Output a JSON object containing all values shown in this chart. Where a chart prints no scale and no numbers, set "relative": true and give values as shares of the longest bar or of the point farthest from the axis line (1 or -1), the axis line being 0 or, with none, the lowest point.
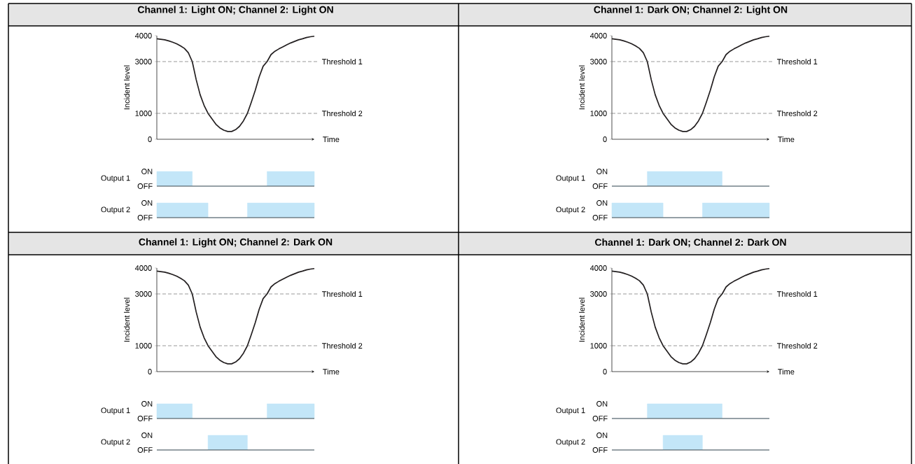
{
  "chart_data": [
    {
      "type": "line",
      "title": "Channel 1: Light ON; Channel 2: Light ON",
      "xlabel": "Time",
      "ylabel": "Incident level",
      "categories": [
        null,
        null,
        null,
        null,
        null,
        null,
        null,
        null,
        null,
        null,
        null,
        null,
        null,
        null,
        null,
        null,
        null,
        null,
        null,
        null,
        null,
        null,
        null,
        null,
        null,
        null,
        null,
        null,
        null,
        null,
        null,
        null,
        null,
        null,
        null,
        null,
        null,
        null,
        null,
        null,
        null
      ],
      "series": [
        {
          "color": "#231f20",
          "values": [
            3880,
            3860,
            3840,
            3800,
            3750,
            3690,
            3610,
            3510,
            3340,
            3000,
            2300,
            1720,
            1310,
            1000,
            790,
            580,
            440,
            350,
            300,
            300,
            370,
            500,
            710,
            1000,
            1430,
            1890,
            2410,
            2820,
            3000,
            3270,
            3400,
            3490,
            3570,
            3650,
            3720,
            3780,
            3840,
            3880,
            3930,
            3960,
            3980
          ]
        }
      ],
      "ylim": [
        0,
        4000
      ],
      "yticks": [
        0,
        1000,
        3000,
        4000
      ],
      "ref_lines": [
        {
          "axis": "y",
          "value": 3000,
          "label": "Threshold 1",
          "color": "#555555",
          "line_style": "dashed"
        },
        {
          "axis": "y",
          "value": 1000,
          "label": "Threshold 2",
          "color": "#555555",
          "line_style": "dashed"
        }
      ],
      "tick_labels": "y"
    },
    {
      "type": "area",
      "relative": true,
      "ylabel": "Output 1",
      "annotations": [
        "ON",
        "OFF"
      ],
      "categories": [
        null,
        null,
        null,
        null,
        null,
        null,
        null,
        null,
        null,
        null,
        null,
        null,
        null,
        null,
        null,
        null,
        null,
        null,
        null,
        null,
        null,
        null,
        null,
        null,
        null,
        null,
        null,
        null,
        null,
        null,
        null,
        null,
        null,
        null,
        null,
        null,
        null,
        null,
        null,
        null,
        null
      ],
      "series": [
        {
          "color": "#c3e6f8",
          "values": [
            1,
            1,
            1,
            1,
            1,
            1,
            1,
            1,
            1,
            0,
            0,
            0,
            0,
            0,
            0,
            0,
            0,
            0,
            0,
            0,
            0,
            0,
            0,
            0,
            0,
            0,
            0,
            0,
            1,
            1,
            1,
            1,
            1,
            1,
            1,
            1,
            1,
            1,
            1,
            1,
            1
          ]
        }
      ]
    },
    {
      "type": "area",
      "relative": true,
      "ylabel": "Output 2",
      "annotations": [
        "ON",
        "OFF"
      ],
      "categories": [
        null,
        null,
        null,
        null,
        null,
        null,
        null,
        null,
        null,
        null,
        null,
        null,
        null,
        null,
        null,
        null,
        null,
        null,
        null,
        null,
        null,
        null,
        null,
        null,
        null,
        null,
        null,
        null,
        null,
        null,
        null,
        null,
        null,
        null,
        null,
        null,
        null,
        null,
        null,
        null,
        null
      ],
      "series": [
        {
          "color": "#c3e6f8",
          "values": [
            1,
            1,
            1,
            1,
            1,
            1,
            1,
            1,
            1,
            1,
            1,
            1,
            1,
            0,
            0,
            0,
            0,
            0,
            0,
            0,
            0,
            0,
            0,
            1,
            1,
            1,
            1,
            1,
            1,
            1,
            1,
            1,
            1,
            1,
            1,
            1,
            1,
            1,
            1,
            1,
            1
          ]
        }
      ]
    },
    {
      "type": "line",
      "title": "Channel 1: Dark ON; Channel 2: Light ON",
      "xlabel": "Time",
      "ylabel": "Incident level",
      "categories": [
        null,
        null,
        null,
        null,
        null,
        null,
        null,
        null,
        null,
        null,
        null,
        null,
        null,
        null,
        null,
        null,
        null,
        null,
        null,
        null,
        null,
        null,
        null,
        null,
        null,
        null,
        null,
        null,
        null,
        null,
        null,
        null,
        null,
        null,
        null,
        null,
        null,
        null,
        null,
        null,
        null
      ],
      "series": [
        {
          "color": "#231f20",
          "values": [
            3880,
            3860,
            3840,
            3800,
            3750,
            3690,
            3610,
            3510,
            3340,
            3000,
            2300,
            1720,
            1310,
            1000,
            790,
            580,
            440,
            350,
            300,
            300,
            370,
            500,
            710,
            1000,
            1430,
            1890,
            2410,
            2820,
            3000,
            3270,
            3400,
            3490,
            3570,
            3650,
            3720,
            3780,
            3840,
            3880,
            3930,
            3960,
            3980
          ]
        }
      ],
      "ylim": [
        0,
        4000
      ],
      "yticks": [
        0,
        1000,
        3000,
        4000
      ],
      "ref_lines": [
        {
          "axis": "y",
          "value": 3000,
          "label": "Threshold 1",
          "color": "#555555",
          "line_style": "dashed"
        },
        {
          "axis": "y",
          "value": 1000,
          "label": "Threshold 2",
          "color": "#555555",
          "line_style": "dashed"
        }
      ],
      "tick_labels": "y"
    },
    {
      "type": "area",
      "relative": true,
      "ylabel": "Output 1",
      "annotations": [
        "ON",
        "OFF"
      ],
      "categories": [
        null,
        null,
        null,
        null,
        null,
        null,
        null,
        null,
        null,
        null,
        null,
        null,
        null,
        null,
        null,
        null,
        null,
        null,
        null,
        null,
        null,
        null,
        null,
        null,
        null,
        null,
        null,
        null,
        null,
        null,
        null,
        null,
        null,
        null,
        null,
        null,
        null,
        null,
        null,
        null,
        null
      ],
      "series": [
        {
          "color": "#c3e6f8",
          "values": [
            0,
            0,
            0,
            0,
            0,
            0,
            0,
            0,
            0,
            1,
            1,
            1,
            1,
            1,
            1,
            1,
            1,
            1,
            1,
            1,
            1,
            1,
            1,
            1,
            1,
            1,
            1,
            1,
            0,
            0,
            0,
            0,
            0,
            0,
            0,
            0,
            0,
            0,
            0,
            0,
            0
          ]
        }
      ]
    },
    {
      "type": "area",
      "relative": true,
      "ylabel": "Output 2",
      "annotations": [
        "ON",
        "OFF"
      ],
      "categories": [
        null,
        null,
        null,
        null,
        null,
        null,
        null,
        null,
        null,
        null,
        null,
        null,
        null,
        null,
        null,
        null,
        null,
        null,
        null,
        null,
        null,
        null,
        null,
        null,
        null,
        null,
        null,
        null,
        null,
        null,
        null,
        null,
        null,
        null,
        null,
        null,
        null,
        null,
        null,
        null,
        null
      ],
      "series": [
        {
          "color": "#c3e6f8",
          "values": [
            1,
            1,
            1,
            1,
            1,
            1,
            1,
            1,
            1,
            1,
            1,
            1,
            1,
            0,
            0,
            0,
            0,
            0,
            0,
            0,
            0,
            0,
            0,
            1,
            1,
            1,
            1,
            1,
            1,
            1,
            1,
            1,
            1,
            1,
            1,
            1,
            1,
            1,
            1,
            1,
            1
          ]
        }
      ]
    },
    {
      "type": "line",
      "title": "Channel 1: Light ON; Channel 2: Dark ON",
      "xlabel": "Time",
      "ylabel": "Incident level",
      "categories": [
        null,
        null,
        null,
        null,
        null,
        null,
        null,
        null,
        null,
        null,
        null,
        null,
        null,
        null,
        null,
        null,
        null,
        null,
        null,
        null,
        null,
        null,
        null,
        null,
        null,
        null,
        null,
        null,
        null,
        null,
        null,
        null,
        null,
        null,
        null,
        null,
        null,
        null,
        null,
        null,
        null
      ],
      "series": [
        {
          "color": "#231f20",
          "values": [
            3880,
            3860,
            3840,
            3800,
            3750,
            3690,
            3610,
            3510,
            3340,
            3000,
            2300,
            1720,
            1310,
            1000,
            790,
            580,
            440,
            350,
            300,
            300,
            370,
            500,
            710,
            1000,
            1430,
            1890,
            2410,
            2820,
            3000,
            3270,
            3400,
            3490,
            3570,
            3650,
            3720,
            3780,
            3840,
            3880,
            3930,
            3960,
            3980
          ]
        }
      ],
      "ylim": [
        0,
        4000
      ],
      "yticks": [
        0,
        1000,
        3000,
        4000
      ],
      "ref_lines": [
        {
          "axis": "y",
          "value": 3000,
          "label": "Threshold 1",
          "color": "#555555",
          "line_style": "dashed"
        },
        {
          "axis": "y",
          "value": 1000,
          "label": "Threshold 2",
          "color": "#555555",
          "line_style": "dashed"
        }
      ],
      "tick_labels": "y"
    },
    {
      "type": "area",
      "relative": true,
      "ylabel": "Output 1",
      "annotations": [
        "ON",
        "OFF"
      ],
      "categories": [
        null,
        null,
        null,
        null,
        null,
        null,
        null,
        null,
        null,
        null,
        null,
        null,
        null,
        null,
        null,
        null,
        null,
        null,
        null,
        null,
        null,
        null,
        null,
        null,
        null,
        null,
        null,
        null,
        null,
        null,
        null,
        null,
        null,
        null,
        null,
        null,
        null,
        null,
        null,
        null,
        null
      ],
      "series": [
        {
          "color": "#c3e6f8",
          "values": [
            1,
            1,
            1,
            1,
            1,
            1,
            1,
            1,
            1,
            0,
            0,
            0,
            0,
            0,
            0,
            0,
            0,
            0,
            0,
            0,
            0,
            0,
            0,
            0,
            0,
            0,
            0,
            0,
            1,
            1,
            1,
            1,
            1,
            1,
            1,
            1,
            1,
            1,
            1,
            1,
            1
          ]
        }
      ]
    },
    {
      "type": "area",
      "relative": true,
      "ylabel": "Output 2",
      "annotations": [
        "ON",
        "OFF"
      ],
      "categories": [
        null,
        null,
        null,
        null,
        null,
        null,
        null,
        null,
        null,
        null,
        null,
        null,
        null,
        null,
        null,
        null,
        null,
        null,
        null,
        null,
        null,
        null,
        null,
        null,
        null,
        null,
        null,
        null,
        null,
        null,
        null,
        null,
        null,
        null,
        null,
        null,
        null,
        null,
        null,
        null,
        null
      ],
      "series": [
        {
          "color": "#c3e6f8",
          "values": [
            0,
            0,
            0,
            0,
            0,
            0,
            0,
            0,
            0,
            0,
            0,
            0,
            0,
            1,
            1,
            1,
            1,
            1,
            1,
            1,
            1,
            1,
            1,
            0,
            0,
            0,
            0,
            0,
            0,
            0,
            0,
            0,
            0,
            0,
            0,
            0,
            0,
            0,
            0,
            0,
            0
          ]
        }
      ]
    },
    {
      "type": "line",
      "title": "Channel 1: Dark ON; Channel 2: Dark ON",
      "xlabel": "Time",
      "ylabel": "Incident level",
      "categories": [
        null,
        null,
        null,
        null,
        null,
        null,
        null,
        null,
        null,
        null,
        null,
        null,
        null,
        null,
        null,
        null,
        null,
        null,
        null,
        null,
        null,
        null,
        null,
        null,
        null,
        null,
        null,
        null,
        null,
        null,
        null,
        null,
        null,
        null,
        null,
        null,
        null,
        null,
        null,
        null,
        null
      ],
      "series": [
        {
          "color": "#231f20",
          "values": [
            3880,
            3860,
            3840,
            3800,
            3750,
            3690,
            3610,
            3510,
            3340,
            3000,
            2300,
            1720,
            1310,
            1000,
            790,
            580,
            440,
            350,
            300,
            300,
            370,
            500,
            710,
            1000,
            1430,
            1890,
            2410,
            2820,
            3000,
            3270,
            3400,
            3490,
            3570,
            3650,
            3720,
            3780,
            3840,
            3880,
            3930,
            3960,
            3980
          ]
        }
      ],
      "ylim": [
        0,
        4000
      ],
      "yticks": [
        0,
        1000,
        3000,
        4000
      ],
      "ref_lines": [
        {
          "axis": "y",
          "value": 3000,
          "label": "Threshold 1",
          "color": "#555555",
          "line_style": "dashed"
        },
        {
          "axis": "y",
          "value": 1000,
          "label": "Threshold 2",
          "color": "#555555",
          "line_style": "dashed"
        }
      ],
      "tick_labels": "y"
    },
    {
      "type": "area",
      "relative": true,
      "ylabel": "Output 1",
      "annotations": [
        "ON",
        "OFF"
      ],
      "categories": [
        null,
        null,
        null,
        null,
        null,
        null,
        null,
        null,
        null,
        null,
        null,
        null,
        null,
        null,
        null,
        null,
        null,
        null,
        null,
        null,
        null,
        null,
        null,
        null,
        null,
        null,
        null,
        null,
        null,
        null,
        null,
        null,
        null,
        null,
        null,
        null,
        null,
        null,
        null,
        null,
        null
      ],
      "series": [
        {
          "color": "#c3e6f8",
          "values": [
            0,
            0,
            0,
            0,
            0,
            0,
            0,
            0,
            0,
            1,
            1,
            1,
            1,
            1,
            1,
            1,
            1,
            1,
            1,
            1,
            1,
            1,
            1,
            1,
            1,
            1,
            1,
            1,
            0,
            0,
            0,
            0,
            0,
            0,
            0,
            0,
            0,
            0,
            0,
            0,
            0
          ]
        }
      ]
    },
    {
      "type": "area",
      "relative": true,
      "ylabel": "Output 2",
      "annotations": [
        "ON",
        "OFF"
      ],
      "categories": [
        null,
        null,
        null,
        null,
        null,
        null,
        null,
        null,
        null,
        null,
        null,
        null,
        null,
        null,
        null,
        null,
        null,
        null,
        null,
        null,
        null,
        null,
        null,
        null,
        null,
        null,
        null,
        null,
        null,
        null,
        null,
        null,
        null,
        null,
        null,
        null,
        null,
        null,
        null,
        null,
        null
      ],
      "series": [
        {
          "color": "#c3e6f8",
          "values": [
            0,
            0,
            0,
            0,
            0,
            0,
            0,
            0,
            0,
            0,
            0,
            0,
            0,
            1,
            1,
            1,
            1,
            1,
            1,
            1,
            1,
            1,
            1,
            0,
            0,
            0,
            0,
            0,
            0,
            0,
            0,
            0,
            0,
            0,
            0,
            0,
            0,
            0,
            0,
            0,
            0
          ]
        }
      ]
    }
  ]
}
